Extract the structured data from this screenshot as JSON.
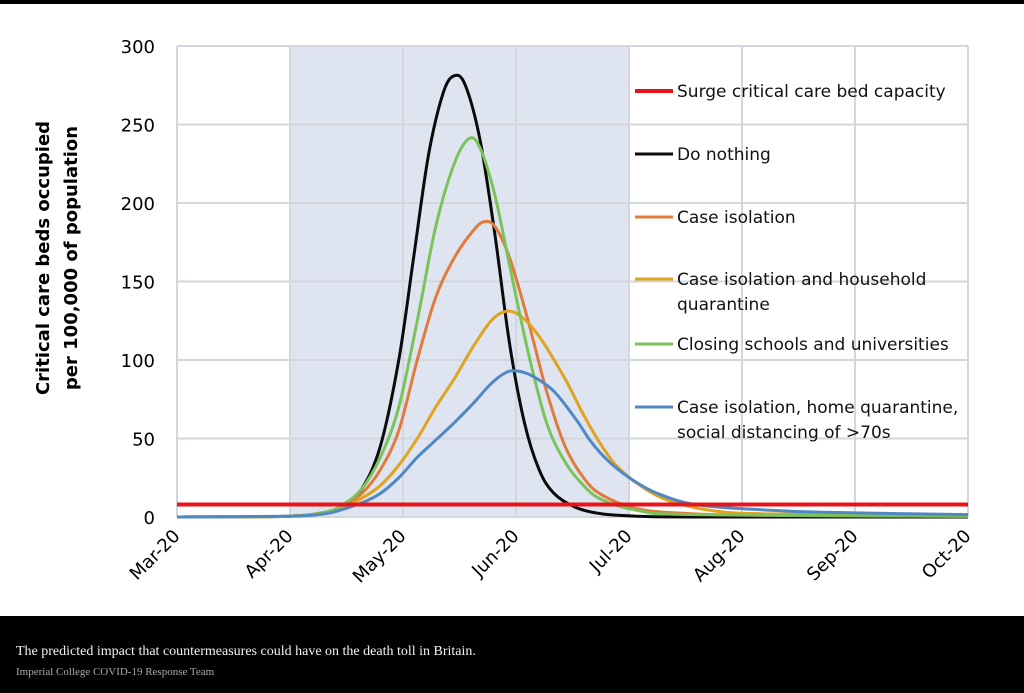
{
  "caption": "The predicted impact that countermeasures could have on the death toll in Britain.",
  "credit": "Imperial College COVID-19 Response Team",
  "chart_data": {
    "type": "line",
    "title": "",
    "xlabel": "",
    "ylabel": "Critical care beds occupied per 100,000 of population",
    "ylabel_lines": [
      "Critical care beds occupied",
      "per 100,000 of population"
    ],
    "ylim": [
      0,
      300
    ],
    "yticks": [
      0,
      50,
      100,
      150,
      200,
      250,
      300
    ],
    "xticks": [
      "Mar-20",
      "Apr-20",
      "May-20",
      "Jun-20",
      "Jul-20",
      "Aug-20",
      "Sep-20",
      "Oct-20"
    ],
    "x_unit": "days since Mar-20 (month ticks every ~30.5 days)",
    "xlim_days": [
      0,
      214
    ],
    "grid": true,
    "legend_placement": "right, inside plot",
    "shaded_region": {
      "from": "Apr-20",
      "to": "Jul-20",
      "color": "#dfe4f1"
    },
    "series": [
      {
        "name": "Surge critical care bed capacity",
        "color": "#e8141b",
        "constant": 8
      },
      {
        "name": "Do nothing",
        "color": "#0b0b0b",
        "points": [
          [
            0,
            0
          ],
          [
            30,
            0.5
          ],
          [
            40,
            3
          ],
          [
            45,
            7
          ],
          [
            50,
            18
          ],
          [
            55,
            45
          ],
          [
            60,
            100
          ],
          [
            64,
            165
          ],
          [
            68,
            230
          ],
          [
            72,
            270
          ],
          [
            75,
            281
          ],
          [
            78,
            275
          ],
          [
            82,
            240
          ],
          [
            86,
            180
          ],
          [
            90,
            110
          ],
          [
            94,
            60
          ],
          [
            98,
            30
          ],
          [
            102,
            15
          ],
          [
            108,
            6
          ],
          [
            115,
            2
          ],
          [
            125,
            0.5
          ],
          [
            140,
            0
          ],
          [
            214,
            0
          ]
        ]
      },
      {
        "name": "Case isolation",
        "color": "#e07b3c",
        "points": [
          [
            0,
            0
          ],
          [
            30,
            0.5
          ],
          [
            40,
            3
          ],
          [
            45,
            7
          ],
          [
            50,
            15
          ],
          [
            55,
            30
          ],
          [
            60,
            55
          ],
          [
            65,
            100
          ],
          [
            70,
            140
          ],
          [
            75,
            165
          ],
          [
            80,
            182
          ],
          [
            83,
            188
          ],
          [
            86,
            185
          ],
          [
            90,
            165
          ],
          [
            95,
            125
          ],
          [
            100,
            80
          ],
          [
            105,
            45
          ],
          [
            110,
            25
          ],
          [
            115,
            14
          ],
          [
            125,
            5
          ],
          [
            140,
            2
          ],
          [
            160,
            1
          ],
          [
            214,
            0.5
          ]
        ]
      },
      {
        "name": "Case isolation and household quarantine",
        "color": "#e0a31e",
        "points": [
          [
            0,
            0
          ],
          [
            30,
            0.5
          ],
          [
            40,
            3
          ],
          [
            45,
            6
          ],
          [
            50,
            12
          ],
          [
            55,
            20
          ],
          [
            60,
            33
          ],
          [
            65,
            50
          ],
          [
            70,
            70
          ],
          [
            75,
            88
          ],
          [
            80,
            108
          ],
          [
            85,
            125
          ],
          [
            89,
            131
          ],
          [
            93,
            128
          ],
          [
            98,
            115
          ],
          [
            105,
            88
          ],
          [
            110,
            65
          ],
          [
            115,
            45
          ],
          [
            120,
            30
          ],
          [
            128,
            16
          ],
          [
            135,
            9
          ],
          [
            145,
            4
          ],
          [
            160,
            2
          ],
          [
            214,
            1
          ]
        ]
      },
      {
        "name": "Closing schools and universities",
        "color": "#7ac35a",
        "points": [
          [
            0,
            0
          ],
          [
            30,
            0.5
          ],
          [
            40,
            3
          ],
          [
            45,
            8
          ],
          [
            50,
            18
          ],
          [
            55,
            38
          ],
          [
            60,
            70
          ],
          [
            65,
            125
          ],
          [
            70,
            185
          ],
          [
            75,
            225
          ],
          [
            79,
            241
          ],
          [
            82,
            235
          ],
          [
            86,
            205
          ],
          [
            90,
            160
          ],
          [
            95,
            105
          ],
          [
            100,
            60
          ],
          [
            105,
            35
          ],
          [
            110,
            20
          ],
          [
            115,
            11
          ],
          [
            125,
            4
          ],
          [
            140,
            1.5
          ],
          [
            214,
            0.5
          ]
        ]
      },
      {
        "name": "Case isolation, home quarantine, social distancing of >70s",
        "color": "#4f88c3",
        "points": [
          [
            0,
            0
          ],
          [
            30,
            0.5
          ],
          [
            40,
            2
          ],
          [
            45,
            5
          ],
          [
            50,
            9
          ],
          [
            55,
            15
          ],
          [
            60,
            25
          ],
          [
            65,
            38
          ],
          [
            70,
            49
          ],
          [
            75,
            60
          ],
          [
            80,
            72
          ],
          [
            85,
            85
          ],
          [
            89,
            92
          ],
          [
            92,
            93
          ],
          [
            96,
            90
          ],
          [
            102,
            80
          ],
          [
            108,
            62
          ],
          [
            112,
            48
          ],
          [
            117,
            35
          ],
          [
            123,
            24
          ],
          [
            130,
            15
          ],
          [
            140,
            8
          ],
          [
            155,
            5
          ],
          [
            175,
            3
          ],
          [
            214,
            1.5
          ]
        ]
      }
    ]
  }
}
